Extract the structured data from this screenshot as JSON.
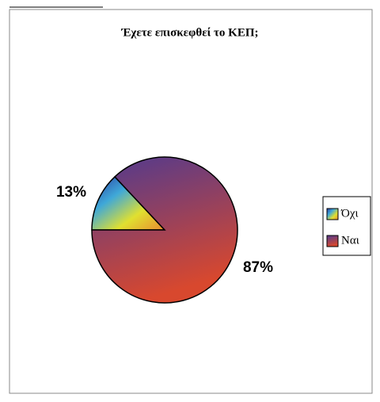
{
  "chart_data": {
    "type": "pie",
    "title": "Έχετε επισκεφθεί το ΚΕΠ;",
    "categories": [
      "Όχι",
      "Ναι"
    ],
    "values": [
      13,
      87
    ],
    "value_labels": [
      "13%",
      "87%"
    ],
    "colors": [
      [
        "#2a3aa0",
        "#3fa8d8",
        "#e0e030",
        "#e88a30"
      ],
      [
        "#4f3a90",
        "#d8482e"
      ]
    ],
    "legend": "right"
  }
}
